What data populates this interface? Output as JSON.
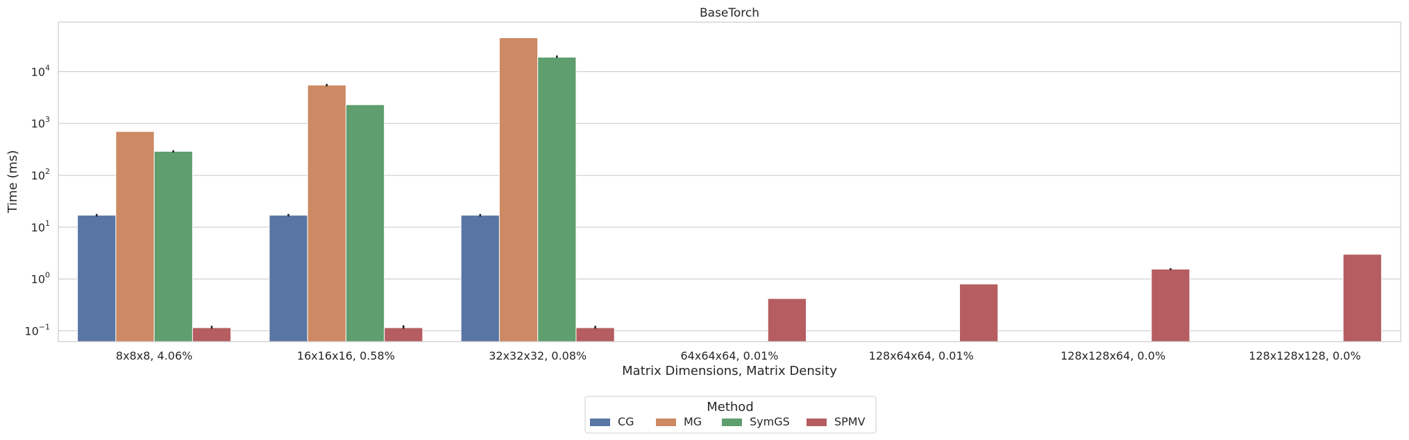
{
  "chart_data": {
    "type": "bar",
    "title": "BaseTorch",
    "xlabel": "Matrix Dimensions, Matrix Density",
    "ylabel": "Time (ms)",
    "yscale": "log",
    "ylim": [
      0.062,
      90000
    ],
    "y_ticks": [
      {
        "value": 0.1,
        "base": "10",
        "exp": "−1"
      },
      {
        "value": 1,
        "base": "10",
        "exp": "0"
      },
      {
        "value": 10,
        "base": "10",
        "exp": "1"
      },
      {
        "value": 100,
        "base": "10",
        "exp": "2"
      },
      {
        "value": 1000,
        "base": "10",
        "exp": "3"
      },
      {
        "value": 10000,
        "base": "10",
        "exp": "4"
      }
    ],
    "grid": true,
    "categories": [
      "8x8x8, 4.06%",
      "16x16x16, 0.58%",
      "32x32x32, 0.08%",
      "64x64x64, 0.01%",
      "128x64x64, 0.01%",
      "128x128x64, 0.0%",
      "128x128x128, 0.0%"
    ],
    "series": [
      {
        "name": "CG",
        "color": "#5975a4",
        "values": [
          17,
          17,
          17,
          null,
          null,
          null,
          null
        ]
      },
      {
        "name": "MG",
        "color": "#cc8963",
        "values": [
          700,
          5500,
          45000,
          null,
          null,
          null,
          null
        ]
      },
      {
        "name": "SymGS",
        "color": "#5f9e6e",
        "values": [
          290,
          2300,
          19000,
          null,
          null,
          null,
          null
        ]
      },
      {
        "name": "SPMV",
        "color": "#b55d60",
        "values": [
          0.115,
          0.115,
          0.115,
          0.42,
          0.8,
          1.55,
          3.0
        ]
      }
    ],
    "error_bars": {
      "CG": [
        [
          16,
          18
        ],
        [
          16,
          18
        ],
        [
          16,
          18
        ],
        null,
        null,
        null,
        null
      ],
      "MG": [
        null,
        [
          5200,
          5800
        ],
        null,
        null,
        null,
        null,
        null
      ],
      "SymGS": [
        [
          275,
          305
        ],
        null,
        [
          18500,
          20500
        ],
        null,
        null,
        null,
        null
      ],
      "SPMV": [
        [
          0.11,
          0.125
        ],
        [
          0.11,
          0.128
        ],
        [
          0.11,
          0.125
        ],
        null,
        null,
        [
          1.48,
          1.62
        ],
        null
      ]
    },
    "legend": {
      "title": "Method",
      "placement": "bottom-center"
    }
  }
}
